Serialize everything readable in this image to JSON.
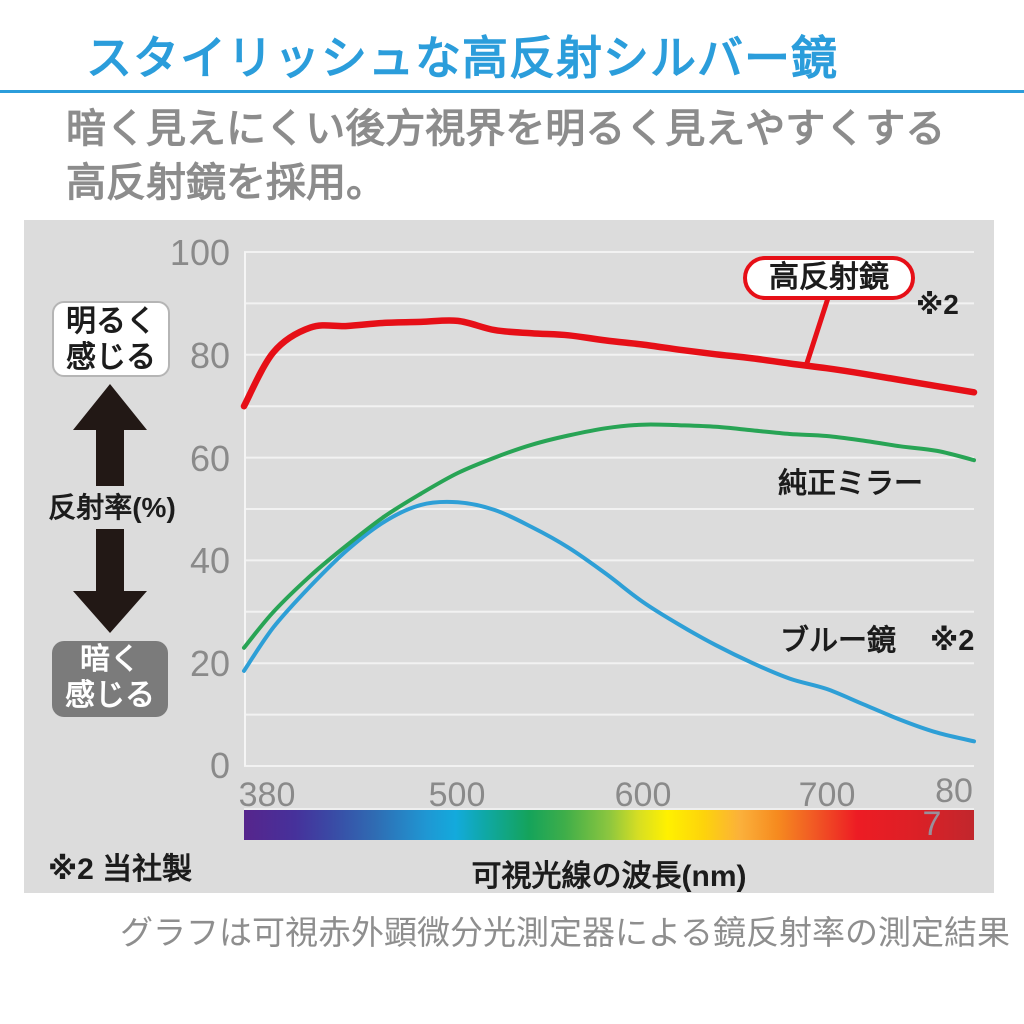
{
  "header": {
    "title": "スタイリッシュな高反射シルバー鏡",
    "accent_color": "#2b9ddb"
  },
  "subtitle": {
    "line1": "暗く見えにくい後方視界を明るく見えやすくする",
    "line2": "高反射鏡を採用。"
  },
  "chart": {
    "y_axis": {
      "label": "反射率(%)",
      "ticks": [
        "100",
        "80",
        "60",
        "40",
        "20",
        "0"
      ]
    },
    "x_axis": {
      "label": "可視光線の波長(nm)",
      "ticks": [
        "380",
        "500",
        "600",
        "700"
      ],
      "clipped_tick_top": "80",
      "clipped_tick_bottom": "7"
    },
    "annotations": {
      "bright_line1": "明るく",
      "bright_line2": "感じる",
      "dark_line1": "暗く",
      "dark_line2": "感じる",
      "red_callout_note": "※2",
      "blue_note": "※2"
    },
    "footnote": "※2 当社製"
  },
  "caption": "グラフは可視赤外顕微分光測定器による鏡反射率の測定結果",
  "chart_data": {
    "type": "line",
    "title": "",
    "xlabel": "可視光線の波長(nm)",
    "ylabel": "反射率(%)",
    "xlim": [
      380,
      800
    ],
    "ylim": [
      0,
      100
    ],
    "grid": "horizontal lines every 10, light on gray panel",
    "legend_position": "inline labels on plot",
    "x": [
      380,
      400,
      420,
      440,
      460,
      480,
      500,
      520,
      540,
      560,
      580,
      600,
      620,
      640,
      660,
      680,
      700,
      720,
      740,
      760,
      780
    ],
    "series": [
      {
        "name": "高反射鏡",
        "note": "※2",
        "color": "#e60f17",
        "values": [
          70,
          80.5,
          85.3,
          85.6,
          86.2,
          86.4,
          86.6,
          84.8,
          84.2,
          83.8,
          82.8,
          82.0,
          81.0,
          80.1,
          79.3,
          78.3,
          77.4,
          76.3,
          75.1,
          73.9,
          72.7
        ]
      },
      {
        "name": "純正ミラー",
        "note": "",
        "color": "#28a455",
        "values": [
          23,
          30,
          37,
          43,
          48.5,
          53,
          57,
          60,
          62.5,
          64.3,
          65.7,
          66.4,
          66.3,
          66.0,
          65.3,
          64.6,
          64.2,
          63.3,
          62.2,
          61.3,
          59.5
        ]
      },
      {
        "name": "ブルー鏡",
        "note": "※2",
        "color": "#2e9fd6",
        "values": [
          18.5,
          27,
          35,
          42,
          47.5,
          50.8,
          51.3,
          49.8,
          46.5,
          42.5,
          37.5,
          32,
          27.5,
          23.5,
          20,
          17,
          15,
          12,
          9,
          6.5,
          4.8
        ]
      }
    ],
    "spectrum_bar": "visible-light rainbow gradient strip under x axis"
  }
}
